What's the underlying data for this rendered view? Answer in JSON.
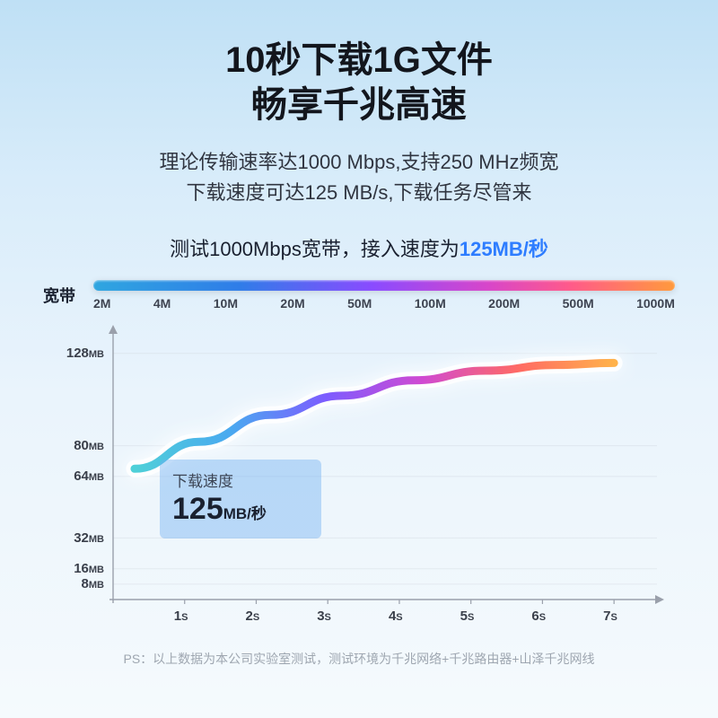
{
  "header": {
    "title_line1": "10秒下载1G文件",
    "title_line2": "畅享千兆高速",
    "subtitle_line1": "理论传输速率达1000 Mbps,支持250 MHz频宽",
    "subtitle_line2": "下载速度可达125 MB/s,下载任务尽管来",
    "test_prefix": "测试1000Mbps宽带，接入速度为",
    "test_highlight": "125MB/秒"
  },
  "bandbar": {
    "label": "宽带",
    "gradient": [
      "#2fa6e0",
      "#2f7de8",
      "#8a4bff",
      "#d846c9",
      "#ff5a8a",
      "#ff9a3c"
    ],
    "ticks": [
      "2M",
      "4M",
      "10M",
      "20M",
      "50M",
      "100M",
      "200M",
      "500M",
      "1000M"
    ]
  },
  "chart": {
    "type": "line",
    "background": "transparent",
    "axis_color": "#9aa0ab",
    "grid_color": "#c8ced6",
    "x": {
      "unit": "S",
      "ticks": [
        1,
        2,
        3,
        4,
        5,
        6,
        7
      ],
      "min": 0,
      "max": 7.6
    },
    "y": {
      "unit": "MB",
      "ticks": [
        8,
        16,
        32,
        64,
        80,
        128
      ],
      "min": 0,
      "max": 140
    },
    "series": {
      "points": [
        {
          "x": 0.3,
          "y": 68
        },
        {
          "x": 1.2,
          "y": 82
        },
        {
          "x": 2.2,
          "y": 96
        },
        {
          "x": 3.2,
          "y": 106
        },
        {
          "x": 4.2,
          "y": 114
        },
        {
          "x": 5.2,
          "y": 119
        },
        {
          "x": 6.2,
          "y": 122
        },
        {
          "x": 7.0,
          "y": 123
        }
      ],
      "stroke_width": 9,
      "gradient": [
        "#4fd0d8",
        "#4aa9f0",
        "#7d5cff",
        "#d04ad2",
        "#ff6a64",
        "#ffb24a"
      ],
      "glow_color": "#ffffff",
      "glow_blur": 10
    },
    "y_start_gridline": 8
  },
  "callout": {
    "title": "下载速度",
    "value_num": "125",
    "value_unit": "MB/秒",
    "bg": "rgba(109,175,241,0.42)"
  },
  "footnote": "PS：以上数据为本公司实验室测试，测试环境为千兆网络+千兆路由器+山泽千兆网线",
  "typography": {
    "title_fontsize": 40,
    "subtitle_fontsize": 22,
    "axis_label_fontsize": 15,
    "callout_value_fontsize": 34
  }
}
